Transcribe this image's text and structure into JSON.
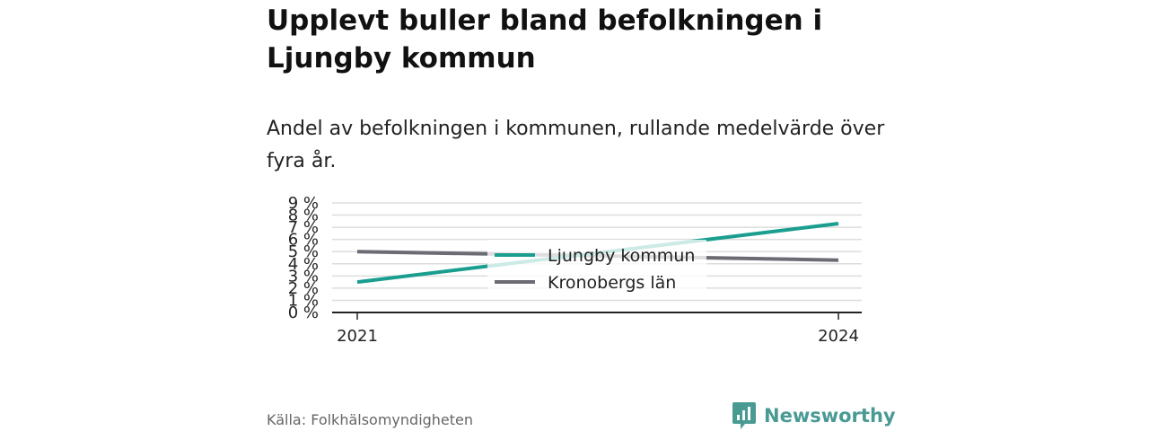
{
  "title": "Upplevt buller bland befolkningen i Ljungby kommun",
  "subtitle": "Andel av befolkningen i kommunen, rullande medelvärde över fyra år.",
  "source": "Källa: Folkhälsomyndigheten",
  "brand": "Newsworthy",
  "colors": {
    "series_1": "#1a9e8f",
    "series_2": "#6b6b73",
    "brand": "#4a9a94"
  },
  "chart_data": {
    "type": "line",
    "x": [
      "2021",
      "2024"
    ],
    "x_tick_labels": [
      "2021",
      "2024"
    ],
    "y_tick_labels": [
      "0 %",
      "1 %",
      "2 %",
      "3 %",
      "4 %",
      "5 %",
      "6 %",
      "7 %",
      "8 %",
      "9 %"
    ],
    "ylim": [
      0,
      9
    ],
    "grid": true,
    "legend_position": "center",
    "series": [
      {
        "name": "Ljungby kommun",
        "values": [
          2.5,
          7.3
        ]
      },
      {
        "name": "Kronobergs län",
        "values": [
          5.0,
          4.3
        ]
      }
    ]
  }
}
